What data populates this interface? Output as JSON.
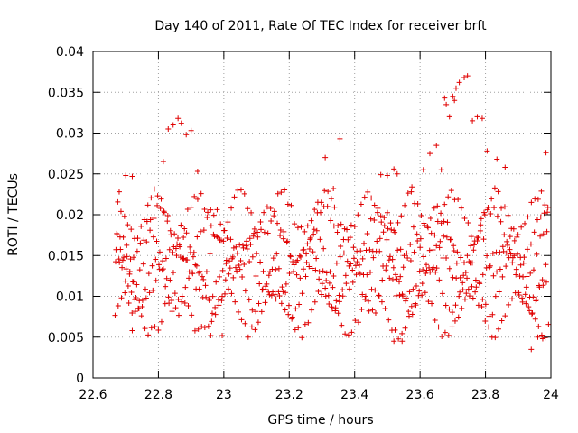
{
  "chart_data": {
    "type": "scatter",
    "title": "Day 140 of 2011, Rate Of TEC Index for receiver brft",
    "xlabel": "GPS time / hours",
    "ylabel": "ROTI / TECUs",
    "xlim": [
      22.6,
      24
    ],
    "ylim": [
      0,
      0.04
    ],
    "grid": true,
    "marker": "+",
    "color": "#e00000",
    "x_ticks": [
      "22.6",
      "22.8",
      "23",
      "23.2",
      "23.4",
      "23.6",
      "23.8",
      "24"
    ],
    "x_tick_values": [
      22.6,
      22.8,
      23.0,
      23.2,
      23.4,
      23.6,
      23.8,
      24.0
    ],
    "y_ticks": [
      "0",
      "0.005",
      "0.01",
      "0.015",
      "0.02",
      "0.025",
      "0.03",
      "0.035",
      "0.04"
    ],
    "y_tick_values": [
      0,
      0.005,
      0.01,
      0.015,
      0.02,
      0.025,
      0.03,
      0.035,
      0.04
    ],
    "x_range": [
      22.667,
      23.993
    ],
    "sample_step": 0.0017,
    "bands": [
      {
        "center": 0.008,
        "amp": 0.0025,
        "period": 0.15,
        "phase": 0.0
      },
      {
        "center": 0.011,
        "amp": 0.003,
        "period": 0.12,
        "phase": 1.3
      },
      {
        "center": 0.013,
        "amp": 0.003,
        "period": 0.2,
        "phase": 2.1
      },
      {
        "center": 0.015,
        "amp": 0.0028,
        "period": 0.1,
        "phase": 0.7
      },
      {
        "center": 0.0175,
        "amp": 0.003,
        "period": 0.17,
        "phase": 3.0
      },
      {
        "center": 0.02,
        "amp": 0.0025,
        "period": 0.13,
        "phase": 1.9
      }
    ],
    "highlights": [
      {
        "x": 22.83,
        "y": 0.0305
      },
      {
        "x": 22.845,
        "y": 0.031
      },
      {
        "x": 22.86,
        "y": 0.0318
      },
      {
        "x": 22.87,
        "y": 0.0312
      },
      {
        "x": 22.885,
        "y": 0.0298
      },
      {
        "x": 22.9,
        "y": 0.0303
      },
      {
        "x": 22.815,
        "y": 0.0265
      },
      {
        "x": 22.92,
        "y": 0.0253
      },
      {
        "x": 23.355,
        "y": 0.0293
      },
      {
        "x": 23.31,
        "y": 0.027
      },
      {
        "x": 23.63,
        "y": 0.0275
      },
      {
        "x": 23.65,
        "y": 0.0285
      },
      {
        "x": 23.665,
        "y": 0.0255
      },
      {
        "x": 23.68,
        "y": 0.0335
      },
      {
        "x": 23.69,
        "y": 0.032
      },
      {
        "x": 23.7,
        "y": 0.0345
      },
      {
        "x": 23.71,
        "y": 0.0355
      },
      {
        "x": 23.72,
        "y": 0.0362
      },
      {
        "x": 23.735,
        "y": 0.0368
      },
      {
        "x": 23.745,
        "y": 0.037
      },
      {
        "x": 23.76,
        "y": 0.0315
      },
      {
        "x": 23.775,
        "y": 0.032
      },
      {
        "x": 23.79,
        "y": 0.0318
      },
      {
        "x": 23.675,
        "y": 0.0343
      },
      {
        "x": 23.705,
        "y": 0.034
      },
      {
        "x": 23.61,
        "y": 0.0255
      },
      {
        "x": 23.805,
        "y": 0.0278
      },
      {
        "x": 23.985,
        "y": 0.0276
      },
      {
        "x": 23.835,
        "y": 0.0268
      },
      {
        "x": 23.86,
        "y": 0.0258
      },
      {
        "x": 23.575,
        "y": 0.0234
      },
      {
        "x": 23.52,
        "y": 0.0256
      },
      {
        "x": 23.5,
        "y": 0.0248
      },
      {
        "x": 23.335,
        "y": 0.0232
      },
      {
        "x": 23.48,
        "y": 0.0249
      },
      {
        "x": 23.53,
        "y": 0.025
      },
      {
        "x": 23.94,
        "y": 0.0035
      },
      {
        "x": 23.96,
        "y": 0.005
      },
      {
        "x": 23.975,
        "y": 0.0048
      },
      {
        "x": 22.72,
        "y": 0.0058
      },
      {
        "x": 22.995,
        "y": 0.0052
      },
      {
        "x": 22.96,
        "y": 0.0052
      },
      {
        "x": 23.52,
        "y": 0.0045
      },
      {
        "x": 23.545,
        "y": 0.0045
      },
      {
        "x": 22.68,
        "y": 0.0228
      },
      {
        "x": 22.7,
        "y": 0.0248
      },
      {
        "x": 22.72,
        "y": 0.0247
      }
    ]
  }
}
